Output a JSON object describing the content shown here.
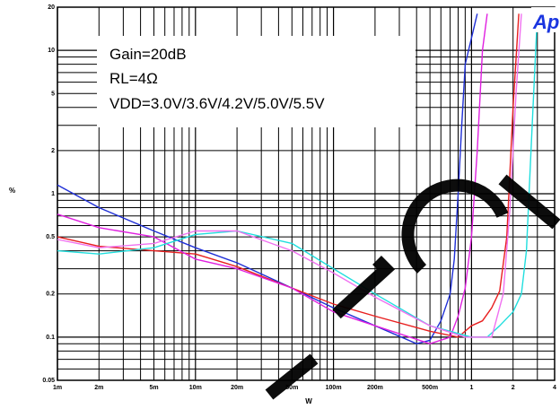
{
  "brand": "Ap",
  "chart_data": {
    "type": "line",
    "xscale": "log",
    "yscale": "log",
    "xlim": [
      0.001,
      4
    ],
    "ylim": [
      0.05,
      20
    ],
    "xlabel": "W",
    "ylabel": "%",
    "grid": true,
    "x_ticks": [
      {
        "value": 0.001,
        "label": "1m"
      },
      {
        "value": 0.002,
        "label": "2m"
      },
      {
        "value": 0.005,
        "label": "5m"
      },
      {
        "value": 0.01,
        "label": "10m"
      },
      {
        "value": 0.02,
        "label": "20m"
      },
      {
        "value": 0.05,
        "label": "50m"
      },
      {
        "value": 0.1,
        "label": "100m"
      },
      {
        "value": 0.2,
        "label": "200m"
      },
      {
        "value": 0.5,
        "label": "500m"
      },
      {
        "value": 1,
        "label": "1"
      },
      {
        "value": 2,
        "label": "2"
      },
      {
        "value": 4,
        "label": "4"
      }
    ],
    "y_ticks": [
      {
        "value": 0.05,
        "label": "0.05"
      },
      {
        "value": 0.1,
        "label": "0.1"
      },
      {
        "value": 0.2,
        "label": "0.2"
      },
      {
        "value": 0.5,
        "label": "0.5"
      },
      {
        "value": 1,
        "label": "1"
      },
      {
        "value": 2,
        "label": "2"
      },
      {
        "value": 5,
        "label": "5"
      },
      {
        "value": 10,
        "label": "10"
      },
      {
        "value": 20,
        "label": "20"
      }
    ],
    "annotations": [
      "Gain=20dB",
      "RL=4Ω",
      "VDD=3.0V/3.6V/4.2V/5.0V/5.5V"
    ],
    "series": [
      {
        "color": "#1f2fd6",
        "x": [
          0.001,
          0.002,
          0.005,
          0.01,
          0.02,
          0.05,
          0.1,
          0.2,
          0.4,
          0.5,
          0.6,
          0.7,
          0.75,
          0.8,
          0.85,
          0.9,
          1.1
        ],
        "y": [
          1.15,
          0.8,
          0.55,
          0.42,
          0.33,
          0.22,
          0.16,
          0.12,
          0.09,
          0.095,
          0.13,
          0.2,
          0.35,
          1.0,
          3.0,
          8.0,
          18.0
        ]
      },
      {
        "color": "#e81f1f",
        "x": [
          0.001,
          0.002,
          0.005,
          0.01,
          0.02,
          0.05,
          0.1,
          0.2,
          0.5,
          0.8,
          1.0,
          1.2,
          1.4,
          1.6,
          1.8,
          2.0,
          2.2
        ],
        "y": [
          0.5,
          0.43,
          0.4,
          0.38,
          0.31,
          0.22,
          0.17,
          0.14,
          0.11,
          0.1,
          0.12,
          0.13,
          0.16,
          0.21,
          0.5,
          4.0,
          18.0
        ]
      },
      {
        "color": "#e020e0",
        "x": [
          0.001,
          0.002,
          0.005,
          0.01,
          0.02,
          0.05,
          0.1,
          0.2,
          0.5,
          0.7,
          0.8,
          0.9,
          1.0,
          1.1,
          1.2,
          1.3
        ],
        "y": [
          0.72,
          0.58,
          0.5,
          0.35,
          0.3,
          0.22,
          0.15,
          0.12,
          0.09,
          0.1,
          0.14,
          0.22,
          0.5,
          2.0,
          10.0,
          18.0
        ]
      },
      {
        "color": "#20dede",
        "x": [
          0.001,
          0.002,
          0.005,
          0.01,
          0.02,
          0.05,
          0.1,
          0.2,
          0.5,
          1.0,
          1.3,
          1.6,
          2.0,
          2.3,
          2.5,
          2.7,
          3.0
        ],
        "y": [
          0.4,
          0.38,
          0.42,
          0.52,
          0.55,
          0.45,
          0.3,
          0.2,
          0.12,
          0.1,
          0.1,
          0.12,
          0.15,
          0.2,
          0.4,
          2.0,
          18.0
        ]
      },
      {
        "color": "#f070f0",
        "x": [
          0.001,
          0.002,
          0.005,
          0.01,
          0.02,
          0.05,
          0.1,
          0.2,
          0.5,
          0.9,
          1.4,
          1.7,
          1.9,
          2.1,
          2.3
        ],
        "y": [
          0.48,
          0.42,
          0.45,
          0.55,
          0.55,
          0.4,
          0.28,
          0.19,
          0.12,
          0.1,
          0.1,
          0.2,
          0.8,
          5.0,
          18.0
        ]
      }
    ]
  }
}
